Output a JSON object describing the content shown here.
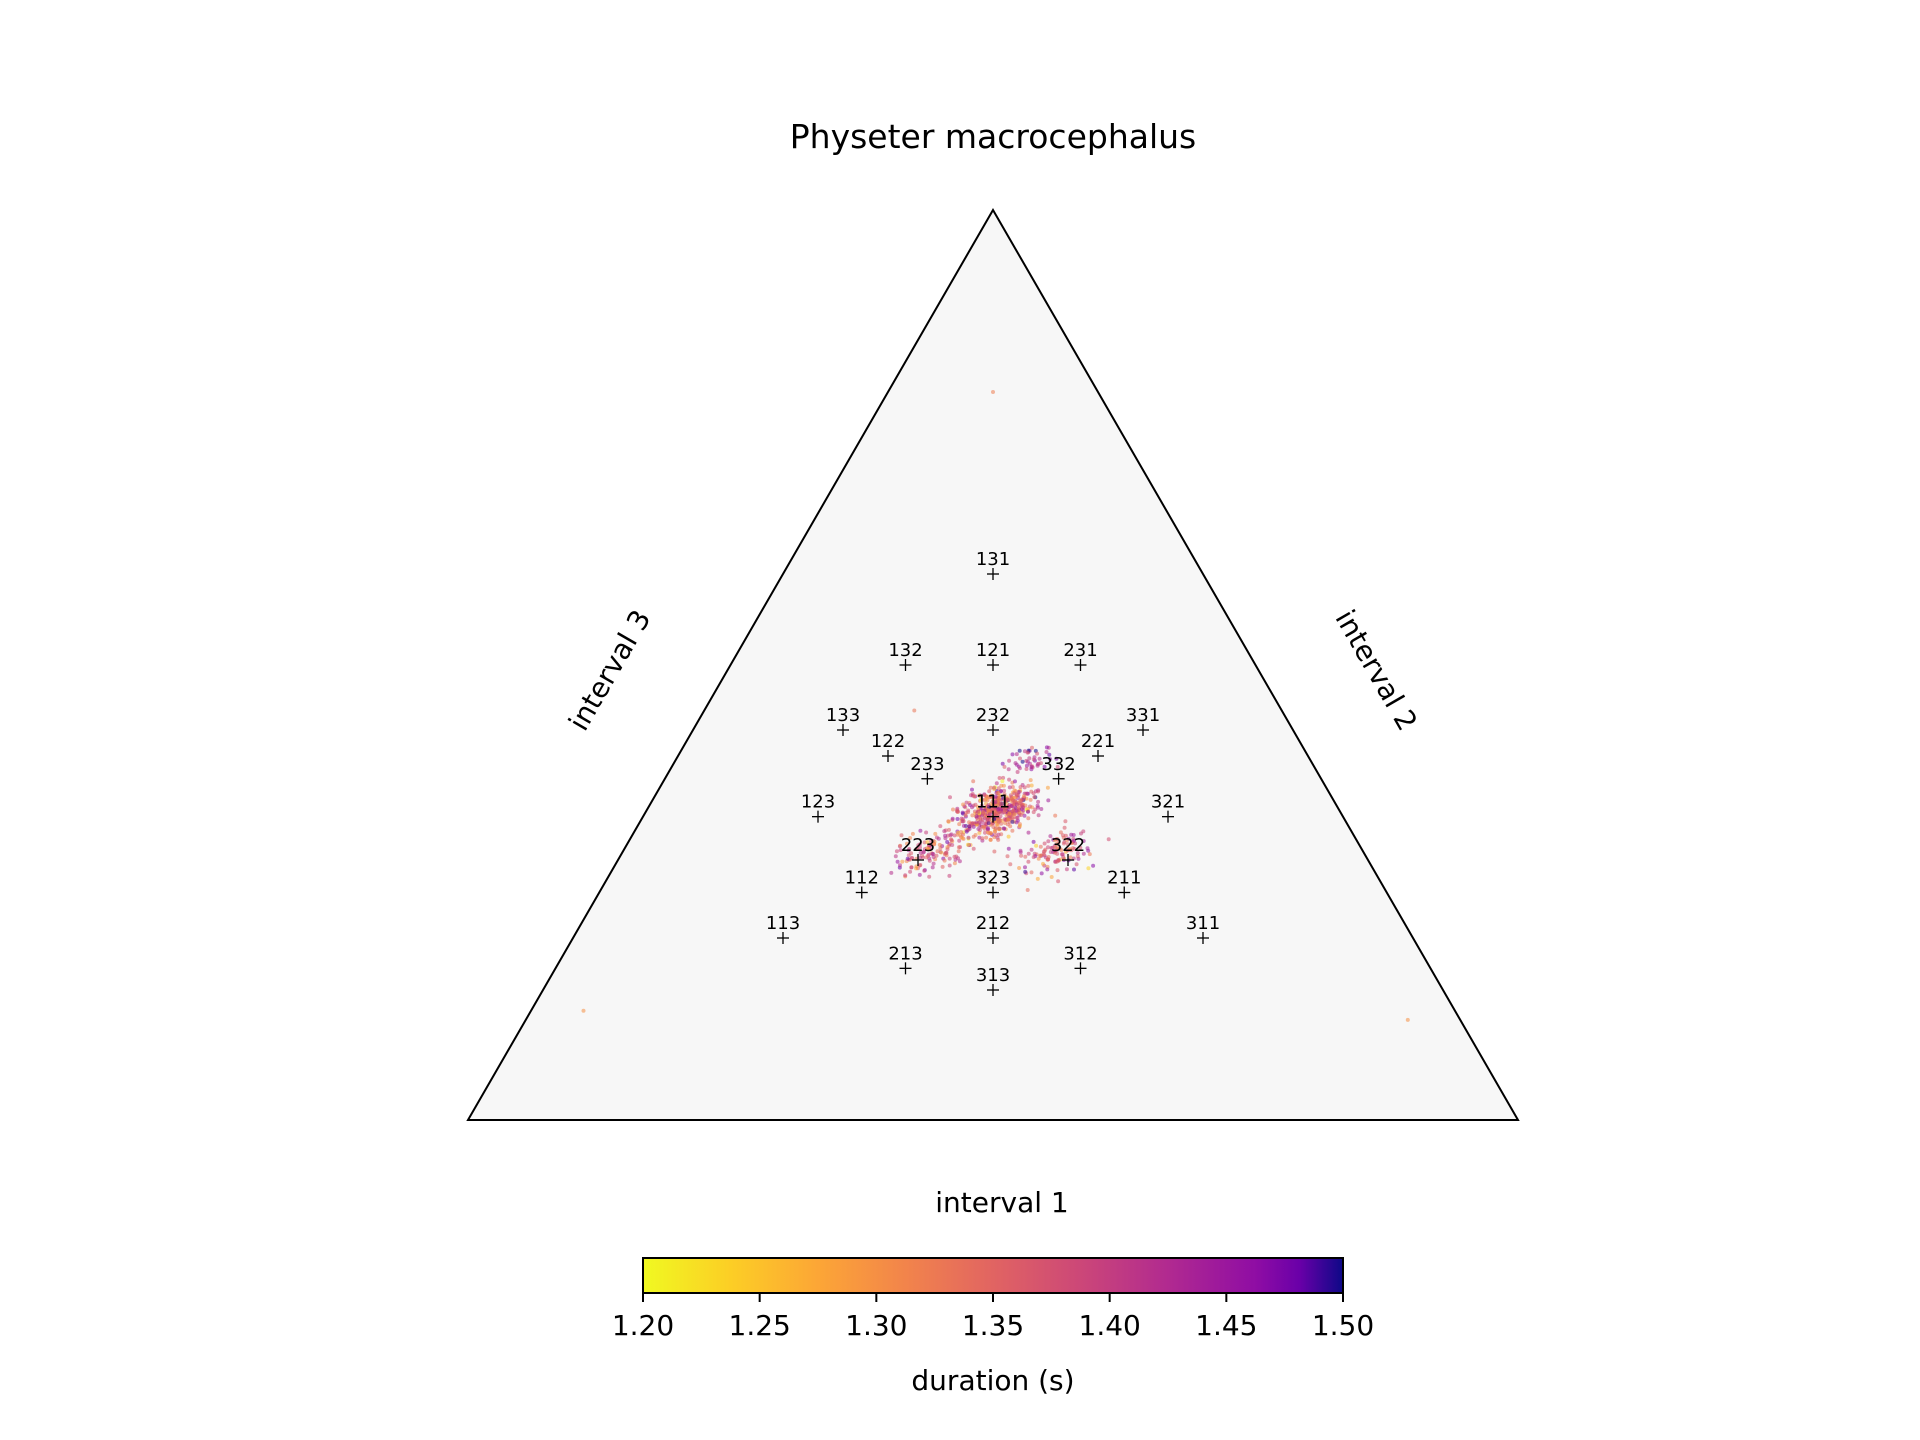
{
  "chart_data": {
    "type": "scatter",
    "subtype": "ternary",
    "title": "Physeter macrocephalus",
    "axes": {
      "bottom": "interval 1",
      "right": "interval 2",
      "left": "interval 3"
    },
    "colorbar": {
      "label": "duration (s)",
      "colormap": "plasma-reversed",
      "min": 1.2,
      "max": 1.5,
      "ticks": [
        "1.20",
        "1.25",
        "1.30",
        "1.35",
        "1.40",
        "1.45",
        "1.50"
      ],
      "placement": "bottom"
    },
    "background_color": "#f7f7f7",
    "reference_points": [
      {
        "label": "111",
        "ratio": [
          1,
          1,
          1
        ]
      },
      {
        "label": "112",
        "ratio": [
          1,
          1,
          2
        ]
      },
      {
        "label": "113",
        "ratio": [
          1,
          1,
          3
        ]
      },
      {
        "label": "121",
        "ratio": [
          1,
          2,
          1
        ]
      },
      {
        "label": "122",
        "ratio": [
          1,
          2,
          2
        ]
      },
      {
        "label": "123",
        "ratio": [
          1,
          2,
          3
        ]
      },
      {
        "label": "131",
        "ratio": [
          1,
          3,
          1
        ]
      },
      {
        "label": "132",
        "ratio": [
          1,
          3,
          2
        ]
      },
      {
        "label": "133",
        "ratio": [
          1,
          3,
          3
        ]
      },
      {
        "label": "211",
        "ratio": [
          2,
          1,
          1
        ]
      },
      {
        "label": "212",
        "ratio": [
          2,
          1,
          2
        ]
      },
      {
        "label": "213",
        "ratio": [
          2,
          1,
          3
        ]
      },
      {
        "label": "221",
        "ratio": [
          2,
          2,
          1
        ]
      },
      {
        "label": "223",
        "ratio": [
          2,
          2,
          3
        ]
      },
      {
        "label": "231",
        "ratio": [
          2,
          3,
          1
        ]
      },
      {
        "label": "232",
        "ratio": [
          2,
          3,
          2
        ]
      },
      {
        "label": "233",
        "ratio": [
          2,
          3,
          3
        ]
      },
      {
        "label": "311",
        "ratio": [
          3,
          1,
          1
        ]
      },
      {
        "label": "312",
        "ratio": [
          3,
          1,
          2
        ]
      },
      {
        "label": "313",
        "ratio": [
          3,
          1,
          3
        ]
      },
      {
        "label": "321",
        "ratio": [
          3,
          2,
          1
        ]
      },
      {
        "label": "322",
        "ratio": [
          3,
          2,
          2
        ]
      },
      {
        "label": "323",
        "ratio": [
          3,
          2,
          3
        ]
      },
      {
        "label": "331",
        "ratio": [
          3,
          3,
          1
        ]
      },
      {
        "label": "332",
        "ratio": [
          3,
          3,
          2
        ]
      }
    ],
    "scatter": {
      "description_hint": "dense cluster of rhythm samples centered on 111, spreading toward 223 and 322",
      "clusters": [
        {
          "center": [
            0.333,
            0.34,
            0.327
          ],
          "spread": 0.018,
          "count": 520,
          "duration_mean": 1.36,
          "duration_sd": 0.06
        },
        {
          "center": [
            0.292,
            0.296,
            0.412
          ],
          "spread": 0.016,
          "count": 130,
          "duration_mean": 1.37,
          "duration_sd": 0.05
        },
        {
          "center": [
            0.414,
            0.293,
            0.293
          ],
          "spread": 0.016,
          "count": 130,
          "duration_mean": 1.38,
          "duration_sd": 0.05
        },
        {
          "center": [
            0.335,
            0.395,
            0.27
          ],
          "spread": 0.012,
          "count": 50,
          "duration_mean": 1.42,
          "duration_sd": 0.04
        }
      ],
      "outliers": [
        {
          "ratio": [
            0.1,
            0.8,
            0.1
          ],
          "duration": 1.32
        },
        {
          "ratio": [
            0.05,
            0.12,
            0.83
          ],
          "duration": 1.3
        },
        {
          "ratio": [
            0.84,
            0.11,
            0.05
          ],
          "duration": 1.3
        },
        {
          "ratio": [
            0.2,
            0.45,
            0.35
          ],
          "duration": 1.33
        }
      ]
    }
  }
}
